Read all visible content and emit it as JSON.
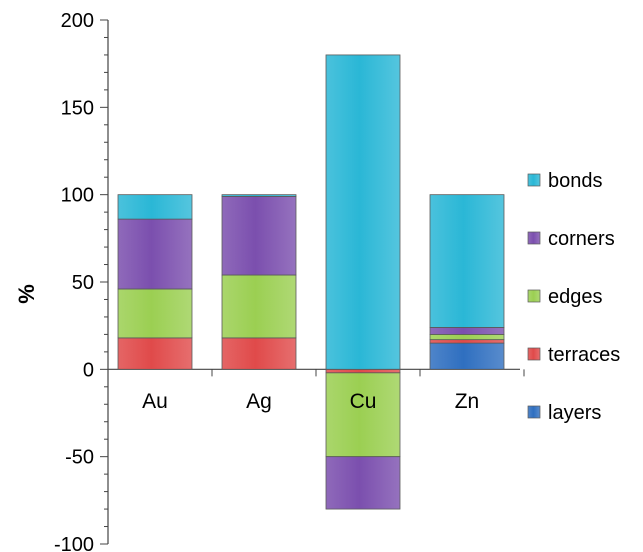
{
  "chart_data": {
    "type": "bar",
    "stacked": true,
    "title": "",
    "xlabel": "",
    "ylabel": "%",
    "ylim": [
      -100,
      200
    ],
    "yticks": [
      -100,
      -50,
      0,
      50,
      100,
      150,
      200
    ],
    "grid": false,
    "legend_position": "right",
    "categories": [
      "Au",
      "Ag",
      "Cu",
      "Zn"
    ],
    "series": [
      {
        "name": "layers",
        "color": "#2f6fc0",
        "values": [
          0,
          0,
          0,
          15
        ]
      },
      {
        "name": "terraces",
        "color": "#e04a4a",
        "values": [
          18,
          18,
          -2,
          2
        ]
      },
      {
        "name": "edges",
        "color": "#9bcf52",
        "values": [
          28,
          36,
          -48,
          3
        ]
      },
      {
        "name": "corners",
        "color": "#7b4fae",
        "values": [
          40,
          45,
          -30,
          4
        ]
      },
      {
        "name": "bonds",
        "color": "#2ab7d6",
        "values": [
          14,
          1,
          180,
          76
        ]
      }
    ]
  }
}
